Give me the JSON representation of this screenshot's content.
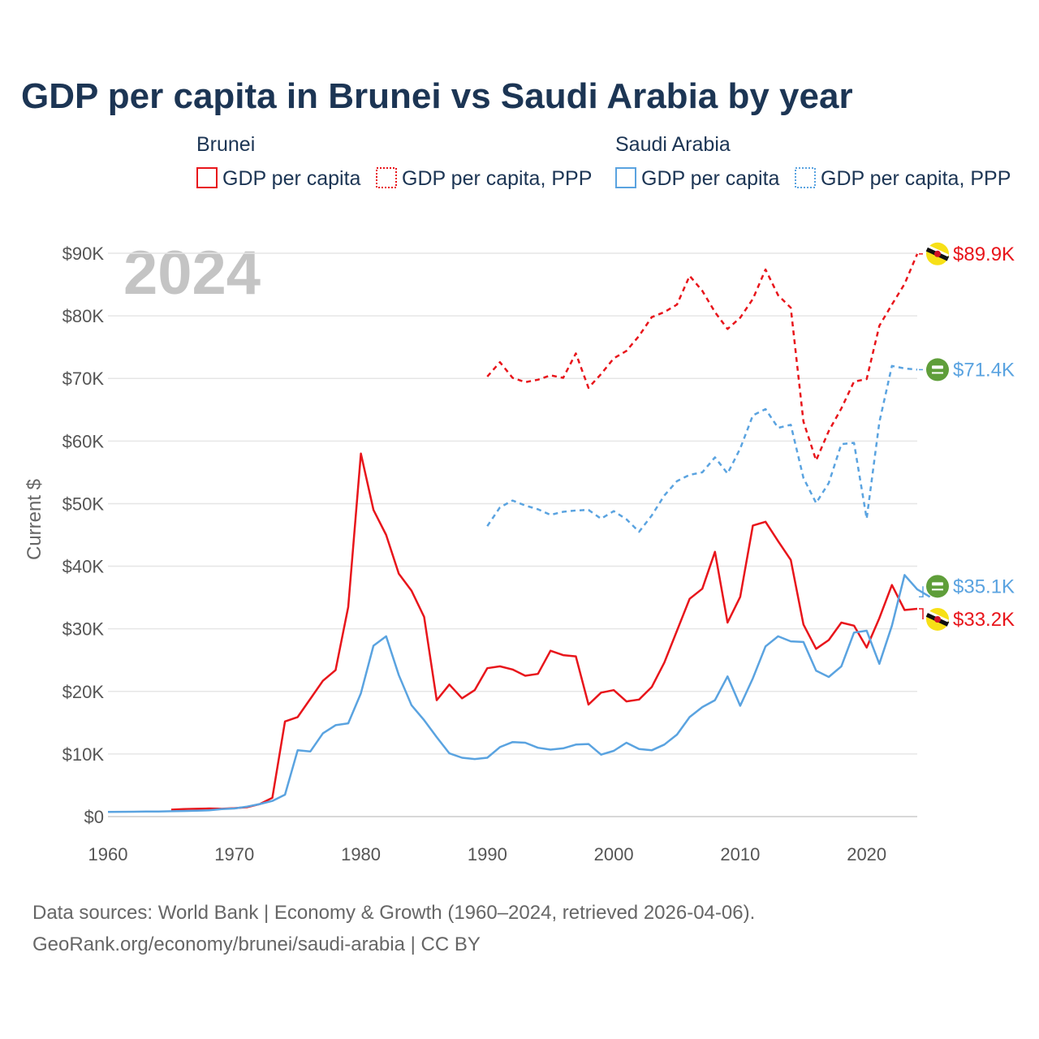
{
  "title": "GDP per capita in Brunei vs Saudi Arabia by year",
  "year_watermark": "2024",
  "legend": {
    "groups": [
      {
        "country": "Brunei",
        "items": [
          {
            "label": "GDP per capita",
            "style": "solid",
            "color": "#e8151b"
          },
          {
            "label": "GDP per capita, PPP",
            "style": "dotted",
            "color": "#e8151b"
          }
        ]
      },
      {
        "country": "Saudi Arabia",
        "items": [
          {
            "label": "GDP per capita",
            "style": "solid",
            "color": "#5aa3e0"
          },
          {
            "label": "GDP per capita, PPP",
            "style": "dotted",
            "color": "#5aa3e0"
          }
        ]
      }
    ]
  },
  "footer": {
    "line1": "Data sources: World Bank | Economy & Growth (1960–2024, retrieved 2026-04-06).",
    "line2": "GeoRank.org/economy/brunei/saudi-arabia | CC BY"
  },
  "end_labels": [
    {
      "text": "$89.9K",
      "color": "#e8151b",
      "flag": "brunei-flag-icon",
      "value": 89900
    },
    {
      "text": "$71.4K",
      "color": "#5aa3e0",
      "flag": "saudi-arabia-flag-icon",
      "value": 71400
    },
    {
      "text": "$35.1K",
      "color": "#5aa3e0",
      "flag": "saudi-arabia-flag-icon",
      "value": 35100
    },
    {
      "text": "$33.2K",
      "color": "#e8151b",
      "flag": "brunei-flag-icon",
      "value": 33200
    }
  ],
  "chart_data": {
    "type": "line",
    "title": "GDP per capita in Brunei vs Saudi Arabia by year",
    "xlabel": "",
    "ylabel": "Current $",
    "xlim": [
      1960,
      2024
    ],
    "ylim": [
      0,
      90000
    ],
    "x_ticks": [
      1960,
      1970,
      1980,
      1990,
      2000,
      2010,
      2020
    ],
    "x_tick_labels": [
      "1960",
      "1970",
      "1980",
      "1990",
      "2000",
      "2010",
      "2020"
    ],
    "y_ticks": [
      0,
      10000,
      20000,
      30000,
      40000,
      50000,
      60000,
      70000,
      80000,
      90000
    ],
    "y_tick_labels": [
      "$0",
      "$10K",
      "$20K",
      "$30K",
      "$40K",
      "$50K",
      "$60K",
      "$70K",
      "$80K",
      "$90K"
    ],
    "grid": true,
    "series": [
      {
        "name": "Brunei GDP per capita",
        "color": "#e8151b",
        "dash": "none",
        "start_year": 1965,
        "values": [
          1100,
          1200,
          1250,
          1300,
          1250,
          1350,
          1500,
          2000,
          3000,
          15200,
          15900,
          18800,
          21700,
          23400,
          33500,
          58000,
          49000,
          45000,
          38800,
          36100,
          31900,
          18600,
          21100,
          18900,
          20200,
          23700,
          24000,
          23500,
          22500,
          22800,
          26500,
          25800,
          25600,
          17900,
          19800,
          20200,
          18400,
          18700,
          20700,
          24600,
          29700,
          34800,
          36400,
          42300,
          31000,
          35100,
          46500,
          47100,
          44000,
          41000,
          30700,
          26800,
          28200,
          31000,
          30500,
          27000,
          31700,
          37000,
          33000,
          33200
        ]
      },
      {
        "name": "Brunei GDP per capita, PPP",
        "color": "#e8151b",
        "dash": "6 5",
        "start_year": 1990,
        "values": [
          70300,
          72600,
          70100,
          69400,
          69800,
          70500,
          70100,
          74000,
          68500,
          70700,
          73200,
          74400,
          76800,
          79800,
          80600,
          81800,
          86400,
          84000,
          80600,
          77900,
          79700,
          82700,
          87400,
          83300,
          81300,
          63100,
          56900,
          61600,
          65200,
          69500,
          69900,
          78400,
          81800,
          85100,
          89900
        ]
      },
      {
        "name": "Saudi Arabia GDP per capita",
        "color": "#5aa3e0",
        "dash": "none",
        "start_year": 1960,
        "values": [
          750,
          760,
          780,
          800,
          820,
          850,
          900,
          950,
          1000,
          1200,
          1300,
          1600,
          2000,
          2500,
          3500,
          10600,
          10400,
          13300,
          14600,
          14900,
          19700,
          27300,
          28800,
          22600,
          17800,
          15400,
          12700,
          10100,
          9400,
          9200,
          9400,
          11100,
          11900,
          11800,
          11000,
          10700,
          10900,
          11500,
          11600,
          9900,
          10500,
          11800,
          10800,
          10600,
          11500,
          13100,
          15900,
          17500,
          18600,
          22400,
          17700,
          22100,
          27200,
          28800,
          28000,
          27900,
          23300,
          22300,
          24000,
          29400,
          29700,
          24400,
          30500,
          38600,
          36300,
          35100
        ]
      },
      {
        "name": "Saudi Arabia GDP per capita, PPP",
        "color": "#5aa3e0",
        "dash": "6 5",
        "start_year": 1990,
        "values": [
          46400,
          49400,
          50500,
          49700,
          49100,
          48200,
          48700,
          48900,
          49000,
          47600,
          48800,
          47500,
          45500,
          48100,
          51300,
          53600,
          54600,
          55000,
          57400,
          54800,
          58800,
          64100,
          65100,
          62100,
          62600,
          54100,
          50100,
          53300,
          59500,
          59700,
          47600,
          63000,
          72000,
          71600,
          71400
        ]
      }
    ]
  }
}
